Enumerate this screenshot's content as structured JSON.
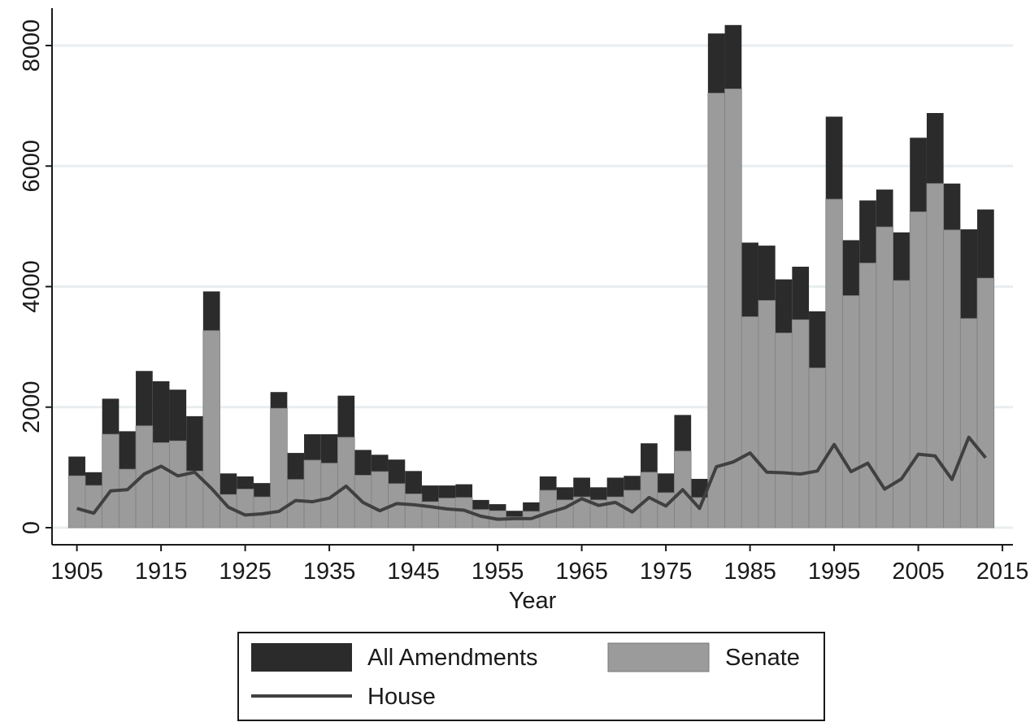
{
  "chart_data": {
    "type": "bar",
    "xlabel": "Year",
    "ylabel": "",
    "ylim": [
      0,
      8600
    ],
    "xlim": [
      1902,
      2015
    ],
    "grid": true,
    "legend_position": "bottom",
    "y_ticks": [
      0,
      2000,
      4000,
      6000,
      8000
    ],
    "y_tick_labels": [
      "0",
      "2000",
      "4000",
      "6000",
      "8000"
    ],
    "x_ticks": [
      1905,
      1915,
      1925,
      1935,
      1945,
      1955,
      1965,
      1975,
      1985,
      1995,
      2005,
      2015
    ],
    "x_tick_labels": [
      "1905",
      "1915",
      "1925",
      "1935",
      "1945",
      "1955",
      "1965",
      "1975",
      "1985",
      "1995",
      "2005",
      "2015"
    ],
    "x": [
      1905,
      1907,
      1909,
      1911,
      1913,
      1915,
      1917,
      1919,
      1921,
      1923,
      1925,
      1927,
      1929,
      1931,
      1933,
      1935,
      1937,
      1939,
      1941,
      1943,
      1945,
      1947,
      1949,
      1951,
      1953,
      1955,
      1957,
      1959,
      1961,
      1963,
      1965,
      1967,
      1969,
      1971,
      1973,
      1975,
      1977,
      1979,
      1981,
      1983,
      1985,
      1987,
      1989,
      1991,
      1993,
      1995,
      1997,
      1999,
      2001,
      2003,
      2005,
      2007,
      2009,
      2011,
      2013
    ],
    "series": [
      {
        "name": "All Amendments",
        "kind": "bar",
        "color": "#2b2b2b",
        "values": [
          1180,
          920,
          2140,
          1600,
          2600,
          2430,
          2290,
          1850,
          3920,
          900,
          850,
          740,
          2250,
          1240,
          1550,
          1550,
          2190,
          1290,
          1210,
          1130,
          940,
          700,
          700,
          720,
          460,
          390,
          280,
          420,
          850,
          670,
          830,
          670,
          830,
          860,
          1400,
          900,
          1870,
          810,
          8200,
          8340,
          4730,
          4680,
          4120,
          4330,
          3590,
          6820,
          4770,
          5430,
          5610,
          4900,
          6470,
          6880,
          5710,
          4950,
          5280
        ]
      },
      {
        "name": "Senate",
        "kind": "bar",
        "color": "#9b9b9b",
        "values": [
          860,
          700,
          1550,
          970,
          1690,
          1410,
          1440,
          940,
          3270,
          550,
          640,
          510,
          1980,
          800,
          1120,
          1070,
          1500,
          870,
          930,
          730,
          560,
          430,
          490,
          500,
          300,
          280,
          180,
          270,
          620,
          460,
          510,
          460,
          510,
          620,
          920,
          580,
          1270,
          500,
          7210,
          7280,
          3500,
          3770,
          3230,
          3450,
          2650,
          5450,
          3850,
          4390,
          4990,
          4100,
          5240,
          5710,
          4940,
          3470,
          4140
        ]
      },
      {
        "name": "House",
        "kind": "line",
        "color": "#404040",
        "values": [
          320,
          240,
          610,
          630,
          890,
          1020,
          860,
          920,
          650,
          340,
          210,
          230,
          270,
          450,
          430,
          490,
          690,
          420,
          280,
          400,
          380,
          350,
          310,
          290,
          190,
          140,
          150,
          150,
          250,
          330,
          480,
          370,
          420,
          260,
          500,
          360,
          630,
          320,
          1010,
          1090,
          1240,
          920,
          910,
          890,
          940,
          1380,
          930,
          1070,
          640,
          810,
          1220,
          1190,
          800,
          1500,
          1160
        ]
      }
    ]
  }
}
